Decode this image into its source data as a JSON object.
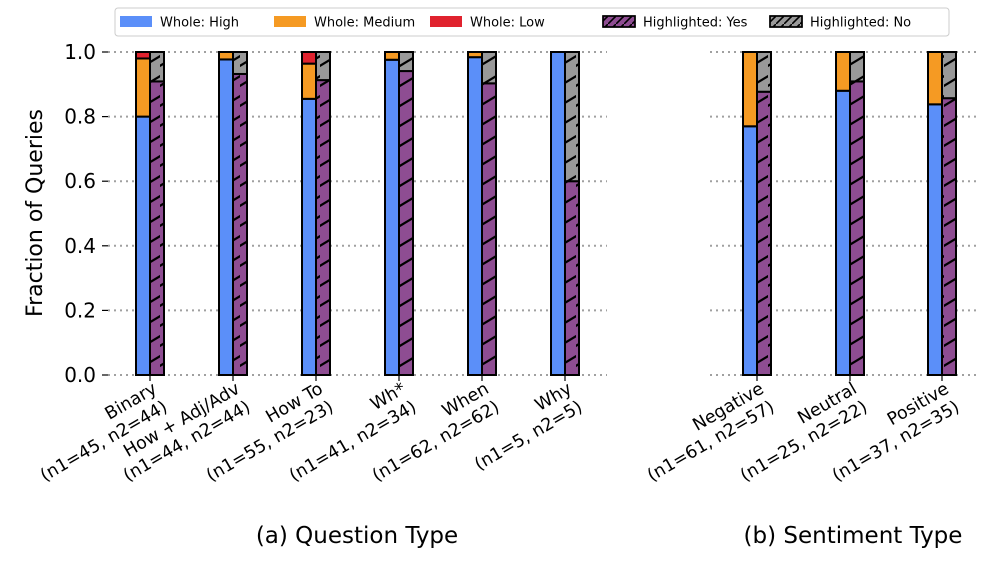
{
  "legend": {
    "items": [
      {
        "label": "Whole: High",
        "color": "#5b8ff9",
        "hatch": false
      },
      {
        "label": "Whole: Medium",
        "color": "#f59a23",
        "hatch": false
      },
      {
        "label": "Whole: Low",
        "color": "#e0222e",
        "hatch": false
      },
      {
        "label": "Highlighted: Yes",
        "color": "#8e4d92",
        "hatch": true
      },
      {
        "label": "Highlighted: No",
        "color": "#999999",
        "hatch": true
      }
    ]
  },
  "chart_data": [
    {
      "type": "bar",
      "stacked": true,
      "title": "(a) Question Type",
      "ylabel": "Fraction of Queries",
      "ylim": [
        0,
        1.0
      ],
      "yticks": [
        "0.0",
        "0.2",
        "0.4",
        "0.6",
        "0.8",
        "1.0"
      ],
      "grid": "horizontal dotted",
      "categories": [
        [
          "Binary",
          "(n1=45, n2=44)"
        ],
        [
          "How + Adj/Adv",
          "(n1=44, n2=44)"
        ],
        [
          "How To",
          "(n1=55, n2=23)"
        ],
        [
          "Wh*",
          "(n1=41, n2=34)"
        ],
        [
          "When",
          "(n1=62, n2=62)"
        ],
        [
          "Why",
          "(n1=5, n2=5)"
        ]
      ],
      "whole": {
        "high": [
          0.8,
          0.977,
          0.855,
          0.976,
          0.984,
          1.0
        ],
        "medium": [
          0.18,
          0.023,
          0.109,
          0.024,
          0.016,
          0.0
        ],
        "low": [
          0.02,
          0.0,
          0.036,
          0.0,
          0.0,
          0.0
        ]
      },
      "highlighted": {
        "yes": [
          0.909,
          0.932,
          0.913,
          0.941,
          0.903,
          0.6
        ],
        "no": [
          0.091,
          0.068,
          0.087,
          0.059,
          0.097,
          0.4
        ]
      }
    },
    {
      "type": "bar",
      "stacked": true,
      "title": "(b) Sentiment Type",
      "ylim": [
        0,
        1.0
      ],
      "categories": [
        [
          "Negative",
          "(n1=61, n2=57)"
        ],
        [
          "Neutral",
          "(n1=25, n2=22)"
        ],
        [
          "Positive",
          "(n1=37, n2=35)"
        ]
      ],
      "whole": {
        "high": [
          0.77,
          0.88,
          0.838
        ],
        "medium": [
          0.23,
          0.12,
          0.162
        ],
        "low": [
          0.0,
          0.0,
          0.0
        ]
      },
      "highlighted": {
        "yes": [
          0.877,
          0.909,
          0.857
        ],
        "no": [
          0.123,
          0.091,
          0.143
        ]
      }
    }
  ]
}
